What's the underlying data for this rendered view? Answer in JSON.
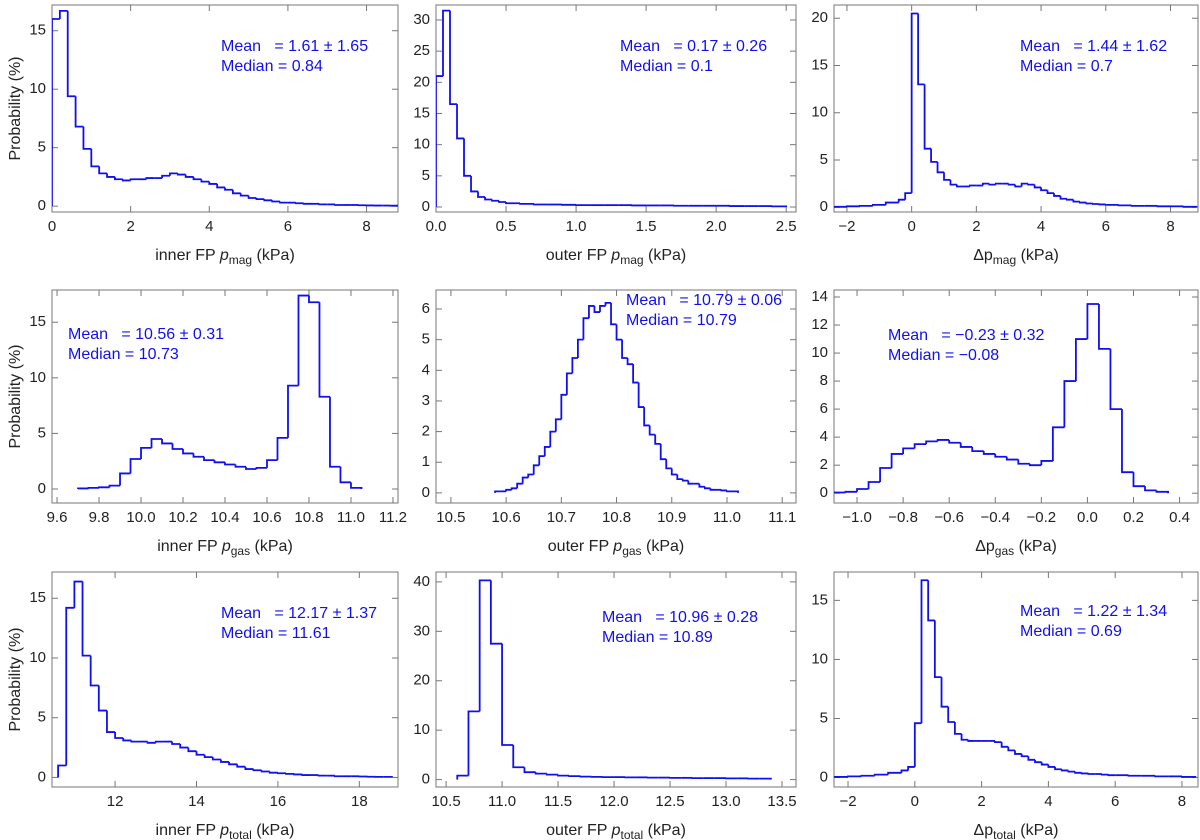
{
  "chart_data": [
    {
      "type": "histogram",
      "ylabel": "Probability (%)",
      "color": "#1010ee",
      "xlabel": {
        "prefix": "inner FP ",
        "symbol": "p",
        "subscript": "mag",
        "suffix": " (kPa)",
        "italic": true
      },
      "annotations": [
        "Mean   = 1.61 ± 1.65",
        "Median = 0.84"
      ],
      "xlim": [
        0,
        8.8
      ],
      "ylim": [
        -0.5,
        17.2
      ],
      "xticks": [
        0,
        2,
        4,
        6,
        8
      ],
      "yticks": [
        0,
        5,
        10,
        15
      ],
      "bins": [
        0,
        0.2,
        0.4,
        0.6,
        0.8,
        1,
        1.2,
        1.4,
        1.6,
        1.8,
        2,
        2.2,
        2.4,
        2.6,
        2.8,
        3,
        3.2,
        3.4,
        3.6,
        3.8,
        4,
        4.2,
        4.4,
        4.6,
        4.8,
        5,
        5.2,
        5.4,
        5.6,
        5.8,
        6,
        6.2,
        6.4,
        6.6,
        6.8,
        7,
        7.2,
        7.4,
        7.6,
        7.8,
        8,
        8.2,
        8.4,
        8.6,
        8.8
      ],
      "values": [
        16.0,
        16.7,
        9.4,
        6.8,
        4.9,
        3.4,
        2.8,
        2.5,
        2.3,
        2.2,
        2.3,
        2.3,
        2.4,
        2.4,
        2.6,
        2.8,
        2.7,
        2.5,
        2.3,
        2.1,
        1.9,
        1.6,
        1.4,
        1.1,
        0.9,
        0.7,
        0.6,
        0.5,
        0.4,
        0.3,
        0.3,
        0.25,
        0.2,
        0.2,
        0.15,
        0.15,
        0.1,
        0.1,
        0.1,
        0.08,
        0.06,
        0.05,
        0.05,
        0.04
      ]
    },
    {
      "type": "histogram",
      "color": "#1010ee",
      "xlabel": {
        "prefix": "outer FP ",
        "symbol": "p",
        "subscript": "mag",
        "suffix": " (kPa)",
        "italic": true
      },
      "annotations": [
        "Mean   = 0.17 ± 0.26",
        "Median = 0.1"
      ],
      "xlim": [
        0,
        2.57
      ],
      "ylim": [
        -0.8,
        32.4
      ],
      "xticks": [
        {
          "value": 0,
          "label": "0.0"
        },
        0.5,
        {
          "value": 1,
          "label": "1.0"
        },
        1.5,
        {
          "value": 2,
          "label": "2.0"
        },
        2.5
      ],
      "yticks": [
        0,
        5,
        10,
        15,
        20,
        25,
        30
      ],
      "bins": [
        0,
        0.05,
        0.1,
        0.15,
        0.2,
        0.25,
        0.3,
        0.35,
        0.4,
        0.45,
        0.5,
        0.6,
        0.7,
        0.8,
        0.9,
        1,
        1.1,
        1.2,
        1.3,
        1.4,
        1.5,
        1.6,
        1.7,
        1.8,
        1.9,
        2,
        2.1,
        2.2,
        2.3,
        2.4,
        2.5
      ],
      "values": [
        21,
        31.5,
        16.5,
        11,
        5,
        2.5,
        1.6,
        1.2,
        1.0,
        0.8,
        0.6,
        0.5,
        0.4,
        0.4,
        0.35,
        0.3,
        0.3,
        0.3,
        0.3,
        0.25,
        0.25,
        0.25,
        0.2,
        0.2,
        0.2,
        0.2,
        0.15,
        0.15,
        0.15,
        0.1
      ]
    },
    {
      "type": "histogram",
      "color": "#1010ee",
      "xlabel": {
        "symbol": "Δp",
        "subscript": "mag",
        "suffix": " (kPa)",
        "italic": false
      },
      "annotations": [
        "Mean   = 1.44 ± 1.62",
        "Median = 0.7"
      ],
      "xlim": [
        -2.4,
        8.85
      ],
      "ylim": [
        -0.5,
        21.4
      ],
      "xticks": [
        {
          "value": -2,
          "label": "−2"
        },
        0,
        2,
        4,
        6,
        8
      ],
      "yticks": [
        0,
        5,
        10,
        15,
        20
      ],
      "bins": [
        -2.4,
        -2,
        -1.6,
        -1.2,
        -0.8,
        -0.4,
        -0.2,
        0,
        0.2,
        0.4,
        0.6,
        0.8,
        1,
        1.2,
        1.4,
        1.6,
        1.8,
        2,
        2.2,
        2.4,
        2.6,
        2.8,
        3,
        3.2,
        3.4,
        3.6,
        3.8,
        4,
        4.2,
        4.4,
        4.6,
        4.8,
        5,
        5.2,
        5.4,
        5.6,
        5.8,
        6,
        6.4,
        6.8,
        7.2,
        7.6,
        8,
        8.4,
        8.8
      ],
      "values": [
        0.05,
        0.1,
        0.15,
        0.25,
        0.5,
        0.8,
        1.5,
        20.5,
        13,
        6.2,
        4.8,
        3.7,
        2.9,
        2.4,
        2.2,
        2.2,
        2.3,
        2.3,
        2.5,
        2.4,
        2.5,
        2.5,
        2.4,
        2.2,
        2.5,
        2.4,
        2.1,
        1.8,
        1.5,
        1.2,
        0.9,
        0.8,
        0.6,
        0.5,
        0.4,
        0.35,
        0.3,
        0.25,
        0.2,
        0.15,
        0.15,
        0.1,
        0.1,
        0.05
      ]
    },
    {
      "type": "histogram",
      "ylabel": "Probability (%)",
      "color": "#1010ee",
      "xlabel": {
        "prefix": "inner FP ",
        "symbol": "p",
        "subscript": "gas",
        "suffix": " (kPa)",
        "italic": true
      },
      "annotations": [
        "Mean   = 10.56 ± 0.31",
        "Median = 10.73"
      ],
      "xlim": [
        9.576,
        11.224
      ],
      "ylim": [
        -1.26,
        17.9
      ],
      "xticks": [
        9.6,
        9.8,
        {
          "value": 10,
          "label": "10.0"
        },
        10.2,
        10.4,
        10.6,
        10.8,
        {
          "value": 11,
          "label": "11.0"
        },
        11.2
      ],
      "yticks": [
        0,
        5,
        10,
        15
      ],
      "bins": [
        9.7,
        9.75,
        9.8,
        9.85,
        9.9,
        9.95,
        10,
        10.05,
        10.1,
        10.15,
        10.2,
        10.25,
        10.3,
        10.35,
        10.4,
        10.45,
        10.5,
        10.55,
        10.6,
        10.65,
        10.7,
        10.75,
        10.8,
        10.85,
        10.9,
        10.95,
        11,
        11.05
      ],
      "values": [
        0.05,
        0.1,
        0.15,
        0.3,
        1.4,
        2.7,
        3.7,
        4.5,
        4.1,
        3.6,
        3.2,
        2.9,
        2.6,
        2.4,
        2.2,
        2.0,
        1.8,
        1.9,
        2.6,
        4.6,
        9.3,
        17.4,
        16.8,
        8.3,
        2.0,
        0.6,
        0.1
      ]
    },
    {
      "type": "histogram",
      "color": "#1010ee",
      "xlabel": {
        "prefix": "outer FP ",
        "symbol": "p",
        "subscript": "gas",
        "suffix": " (kPa)",
        "italic": true
      },
      "annotations": [
        "Mean   = 10.79 ± 0.06",
        "Median = 10.79"
      ],
      "xlim": [
        10.473,
        11.125
      ],
      "ylim": [
        -0.33,
        6.62
      ],
      "xticks": [
        10.5,
        10.6,
        10.7,
        10.8,
        10.9,
        {
          "value": 11,
          "label": "11.0"
        },
        11.1
      ],
      "yticks": [
        0,
        1,
        2,
        3,
        4,
        5,
        6
      ],
      "bins": [
        10.58,
        10.59,
        10.6,
        10.61,
        10.62,
        10.63,
        10.64,
        10.65,
        10.66,
        10.67,
        10.68,
        10.69,
        10.7,
        10.71,
        10.72,
        10.73,
        10.74,
        10.75,
        10.76,
        10.77,
        10.78,
        10.79,
        10.8,
        10.81,
        10.82,
        10.83,
        10.84,
        10.85,
        10.86,
        10.87,
        10.88,
        10.89,
        10.9,
        10.91,
        10.92,
        10.93,
        10.94,
        10.95,
        10.96,
        10.97,
        10.98,
        10.99,
        11,
        11.01,
        11.02
      ],
      "values": [
        0.05,
        0.05,
        0.1,
        0.15,
        0.3,
        0.5,
        0.6,
        0.9,
        1.2,
        1.5,
        2.0,
        2.4,
        3.2,
        3.9,
        4.4,
        5.0,
        5.7,
        6.1,
        5.9,
        6.1,
        6.2,
        5.5,
        5.0,
        4.4,
        4.2,
        3.6,
        2.8,
        2.2,
        1.9,
        1.6,
        1.1,
        0.8,
        0.6,
        0.45,
        0.4,
        0.3,
        0.3,
        0.2,
        0.15,
        0.1,
        0.1,
        0.08,
        0.05,
        0.05
      ]
    },
    {
      "type": "histogram",
      "color": "#1010ee",
      "xlabel": {
        "symbol": "Δp",
        "subscript": "gas",
        "suffix": " (kPa)",
        "italic": false
      },
      "annotations": [
        "Mean   = −0.23 ± 0.32",
        "Median = −0.08"
      ],
      "xlim": [
        -1.1,
        0.48
      ],
      "ylim": [
        -0.7,
        14.5
      ],
      "xticks": [
        {
          "value": -1,
          "label": "−1.0"
        },
        {
          "value": -0.8,
          "label": "−0.8"
        },
        {
          "value": -0.6,
          "label": "−0.6"
        },
        {
          "value": -0.4,
          "label": "−0.4"
        },
        {
          "value": -0.2,
          "label": "−0.2"
        },
        {
          "value": 0,
          "label": "0.0"
        },
        0.2,
        0.4
      ],
      "yticks": [
        0,
        2,
        4,
        6,
        8,
        10,
        12,
        14
      ],
      "bins": [
        -1.1,
        -1.05,
        -1,
        -0.95,
        -0.9,
        -0.85,
        -0.8,
        -0.75,
        -0.7,
        -0.65,
        -0.6,
        -0.55,
        -0.5,
        -0.45,
        -0.4,
        -0.35,
        -0.3,
        -0.25,
        -0.2,
        -0.15,
        -0.1,
        -0.05,
        0,
        0.05,
        0.1,
        0.15,
        0.2,
        0.25,
        0.3,
        0.35
      ],
      "values": [
        0.05,
        0.1,
        0.3,
        0.8,
        1.8,
        2.8,
        3.2,
        3.5,
        3.7,
        3.8,
        3.6,
        3.3,
        3.0,
        2.8,
        2.6,
        2.4,
        2.1,
        2.0,
        2.3,
        4.7,
        8.0,
        11.0,
        13.5,
        10.3,
        6.0,
        1.5,
        0.5,
        0.2,
        0.1
      ]
    },
    {
      "type": "histogram",
      "ylabel": "Probability (%)",
      "color": "#1010ee",
      "xlabel": {
        "prefix": "inner FP ",
        "symbol": "p",
        "subscript": "total",
        "suffix": " (kPa)",
        "italic": true
      },
      "annotations": [
        "Mean   = 12.17 ± 1.37",
        "Median = 11.61"
      ],
      "xlim": [
        10.45,
        18.95
      ],
      "ylim": [
        -0.8,
        17.2
      ],
      "xticks": [
        12,
        14,
        16,
        18
      ],
      "yticks": [
        0,
        5,
        10,
        15
      ],
      "bins": [
        10.6,
        10.8,
        11,
        11.2,
        11.4,
        11.6,
        11.8,
        12,
        12.2,
        12.4,
        12.6,
        12.8,
        13,
        13.2,
        13.4,
        13.6,
        13.8,
        14,
        14.2,
        14.4,
        14.6,
        14.8,
        15,
        15.2,
        15.4,
        15.6,
        15.8,
        16,
        16.2,
        16.4,
        16.6,
        16.8,
        17,
        17.2,
        17.4,
        17.6,
        17.8,
        18,
        18.2,
        18.4,
        18.6,
        18.8
      ],
      "values": [
        1.0,
        14.2,
        16.4,
        10.2,
        7.7,
        5.6,
        3.8,
        3.3,
        3.1,
        3.0,
        3.0,
        2.9,
        3.0,
        3.0,
        2.8,
        2.5,
        2.2,
        1.9,
        1.7,
        1.5,
        1.3,
        1.1,
        0.9,
        0.7,
        0.6,
        0.5,
        0.4,
        0.35,
        0.3,
        0.25,
        0.2,
        0.2,
        0.15,
        0.15,
        0.1,
        0.1,
        0.1,
        0.08,
        0.06,
        0.05,
        0.05
      ]
    },
    {
      "type": "histogram",
      "color": "#1010ee",
      "xlabel": {
        "prefix": "outer FP ",
        "symbol": "p",
        "subscript": "total",
        "suffix": " (kPa)",
        "italic": true
      },
      "annotations": [
        "Mean   = 10.96 ± 0.28",
        "Median = 10.89"
      ],
      "xlim": [
        10.41,
        13.625
      ],
      "ylim": [
        -1.5,
        42
      ],
      "xticks": [
        10.5,
        {
          "value": 11,
          "label": "11.0"
        },
        11.5,
        {
          "value": 12,
          "label": "12.0"
        },
        12.5,
        {
          "value": 13,
          "label": "13.0"
        },
        13.5
      ],
      "yticks": [
        0,
        10,
        20,
        30,
        40
      ],
      "bins": [
        10.6,
        10.7,
        10.8,
        10.9,
        11,
        11.1,
        11.2,
        11.3,
        11.4,
        11.5,
        11.6,
        11.7,
        11.8,
        11.9,
        12,
        12.1,
        12.2,
        12.3,
        12.4,
        12.5,
        12.6,
        12.7,
        12.8,
        12.9,
        13,
        13.1,
        13.2,
        13.3,
        13.4
      ],
      "values": [
        0.8,
        13.8,
        40.3,
        27.5,
        7.0,
        2.5,
        1.5,
        1.2,
        1.0,
        0.8,
        0.7,
        0.6,
        0.55,
        0.5,
        0.5,
        0.45,
        0.45,
        0.4,
        0.4,
        0.35,
        0.35,
        0.3,
        0.3,
        0.3,
        0.25,
        0.25,
        0.2,
        0.2
      ]
    },
    {
      "type": "histogram",
      "color": "#1010ee",
      "xlabel": {
        "symbol": "Δp",
        "subscript": "total",
        "suffix": " (kPa)",
        "italic": false
      },
      "annotations": [
        "Mean   = 1.22 ± 1.34",
        "Median = 0.69"
      ],
      "xlim": [
        -2.42,
        8.48
      ],
      "ylim": [
        -0.8,
        17.4
      ],
      "xticks": [
        {
          "value": -2,
          "label": "−2"
        },
        0,
        2,
        4,
        6,
        8
      ],
      "yticks": [
        0,
        5,
        10,
        15
      ],
      "bins": [
        -2.4,
        -2,
        -1.6,
        -1.2,
        -0.8,
        -0.4,
        -0.2,
        0,
        0.2,
        0.4,
        0.6,
        0.8,
        1,
        1.2,
        1.4,
        1.6,
        1.8,
        2,
        2.2,
        2.4,
        2.6,
        2.8,
        3,
        3.2,
        3.4,
        3.6,
        3.8,
        4,
        4.2,
        4.4,
        4.6,
        4.8,
        5,
        5.2,
        5.4,
        5.6,
        5.8,
        6,
        6.4,
        6.8,
        7.2,
        7.6,
        8,
        8.4
      ],
      "values": [
        0.05,
        0.1,
        0.15,
        0.25,
        0.4,
        0.6,
        0.9,
        4.6,
        16.7,
        13.3,
        8.5,
        6,
        4.7,
        3.7,
        3.2,
        3.1,
        3.1,
        3.1,
        3.1,
        3,
        2.6,
        2.3,
        2,
        1.8,
        1.5,
        1.3,
        1.1,
        0.9,
        0.7,
        0.6,
        0.5,
        0.4,
        0.35,
        0.3,
        0.3,
        0.25,
        0.2,
        0.2,
        0.15,
        0.15,
        0.1,
        0.1,
        0.05
      ]
    }
  ]
}
